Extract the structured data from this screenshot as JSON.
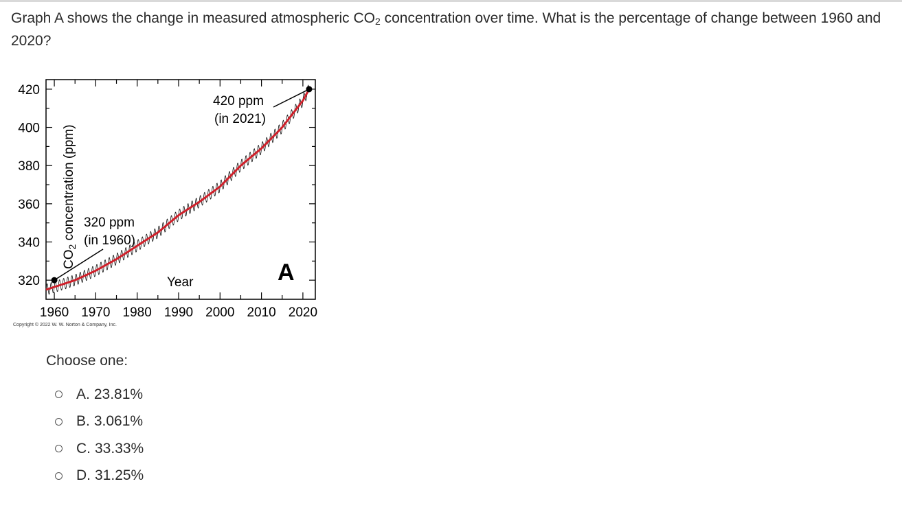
{
  "question": {
    "before": "Graph A shows the change in measured atmospheric CO",
    "sub": "2",
    "after": " concentration over time. What is the percentage of change between 1960 and 2020?"
  },
  "chart_data": {
    "type": "line",
    "xlabel": "Year",
    "ylabel_main": "CO",
    "ylabel_sub": "2",
    "ylabel_rest": " concentration (ppm)",
    "panel_label": "A",
    "xlim": [
      1958,
      2023
    ],
    "ylim": [
      310,
      425
    ],
    "x_ticks": [
      1960,
      1970,
      1980,
      1990,
      2000,
      2010,
      2020
    ],
    "y_ticks": [
      320,
      340,
      360,
      380,
      400,
      420
    ],
    "series": [
      {
        "color": "#d0202a",
        "x": [
          1958,
          1965,
          1970,
          1975,
          1980,
          1985,
          1990,
          1995,
          2000,
          2005,
          2010,
          2015,
          2020,
          2021.5
        ],
        "values": [
          315,
          320,
          325,
          331,
          338,
          345,
          354,
          361,
          369,
          380,
          389,
          400,
          414,
          420
        ]
      }
    ],
    "seasonal_amplitude_ppm": 3,
    "annotations": [
      {
        "line1": "320 ppm",
        "line2": "(in 1960)",
        "x": 1960,
        "y": 320
      },
      {
        "line1": "420 ppm",
        "line2": "(in 2021)",
        "x": 2021.5,
        "y": 420
      }
    ]
  },
  "copyright": "Copyright © 2022 W. W. Norton & Company, Inc.",
  "choose_label": "Choose one:",
  "options": [
    {
      "letter": "A.",
      "text": "23.81%"
    },
    {
      "letter": "B.",
      "text": "3.061%"
    },
    {
      "letter": "C.",
      "text": "33.33%"
    },
    {
      "letter": "D.",
      "text": "31.25%"
    }
  ]
}
